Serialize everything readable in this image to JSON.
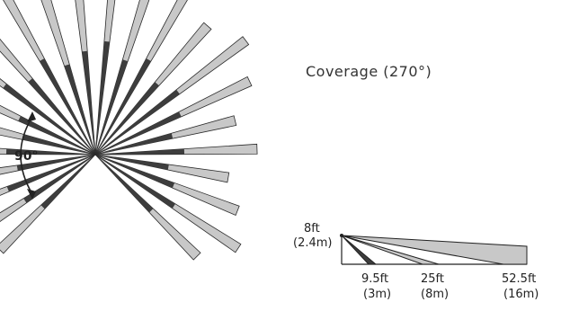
{
  "diagram": {
    "title": "Coverage (270°)",
    "angle_label": "90°",
    "side_view": {
      "height_label": "8ft",
      "height_metric": "(2.4m)",
      "distances": [
        {
          "ft": "9.5ft",
          "m": "(3m)"
        },
        {
          "ft": "25ft",
          "m": "(8m)"
        },
        {
          "ft": "52.5ft",
          "m": "(16m)"
        }
      ]
    },
    "colors": {
      "beam_fill": "#c8c8c8",
      "beam_dark": "#3d3d3d",
      "beam_stroke": "#2a2a2a",
      "text": "#222222"
    }
  }
}
